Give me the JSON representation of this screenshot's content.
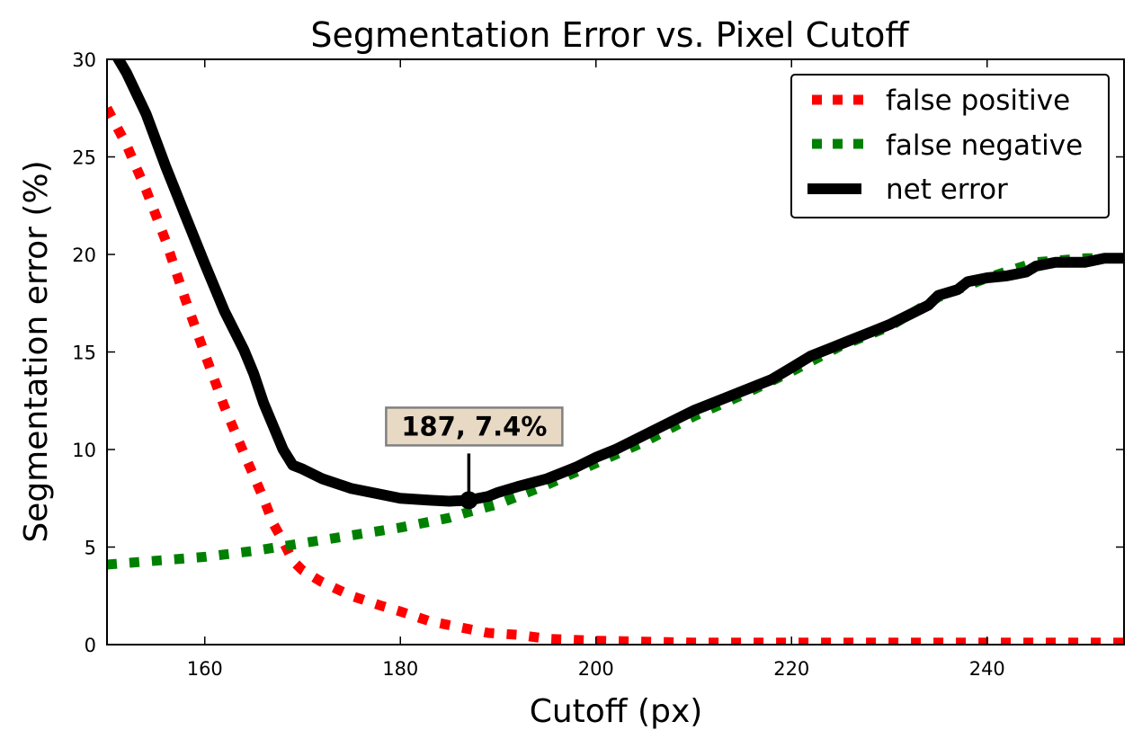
{
  "chart_data": {
    "type": "line",
    "title": "Segmentation Error vs. Pixel Cutoff",
    "xlabel": "Cutoff (px)",
    "ylabel": "Segmentation error (%)",
    "xlim": [
      150,
      254
    ],
    "ylim": [
      0,
      30
    ],
    "xticks": [
      160,
      180,
      200,
      220,
      240
    ],
    "yticks": [
      0,
      5,
      10,
      15,
      20,
      25,
      30
    ],
    "grid": false,
    "legend_position": "top-right",
    "series": [
      {
        "name": "false positive",
        "color": "#ff0000",
        "style": "dotted",
        "x": [
          150,
          152,
          154,
          156,
          158,
          160,
          162,
          164,
          166,
          167,
          168,
          169,
          170,
          172,
          175,
          178,
          180,
          183,
          186,
          189,
          192,
          195,
          200,
          205,
          210,
          220,
          230,
          240,
          254
        ],
        "y": [
          27.5,
          25.6,
          23.3,
          20.7,
          17.7,
          14.9,
          12.2,
          9.8,
          7.5,
          6.2,
          5.3,
          4.3,
          3.8,
          3.2,
          2.5,
          2.0,
          1.7,
          1.2,
          0.9,
          0.6,
          0.5,
          0.3,
          0.2,
          0.15,
          0.1,
          0.1,
          0.1,
          0.1,
          0.1
        ]
      },
      {
        "name": "false negative",
        "color": "#008000",
        "style": "dotted",
        "x": [
          150,
          155,
          160,
          165,
          170,
          175,
          180,
          185,
          187,
          190,
          195,
          200,
          205,
          210,
          215,
          220,
          225,
          230,
          235,
          240,
          245,
          250,
          254
        ],
        "y": [
          4.1,
          4.3,
          4.5,
          4.8,
          5.2,
          5.6,
          6.0,
          6.5,
          6.8,
          7.2,
          8.2,
          9.3,
          10.4,
          11.7,
          12.8,
          14.0,
          15.3,
          16.3,
          17.8,
          18.8,
          19.6,
          19.8,
          19.8
        ]
      },
      {
        "name": "net error",
        "color": "#000000",
        "style": "solid",
        "x": [
          150,
          152,
          154,
          156,
          158,
          160,
          162,
          164,
          165,
          166,
          167,
          168,
          169,
          170,
          172,
          175,
          178,
          180,
          183,
          185,
          187,
          189,
          190,
          192,
          195,
          198,
          200,
          202,
          204,
          206,
          208,
          210,
          212,
          215,
          218,
          220,
          222,
          224,
          226,
          228,
          230,
          232,
          234,
          235,
          237,
          238,
          240,
          242,
          243,
          244,
          245,
          247,
          249,
          250,
          251,
          252,
          254
        ],
        "y": [
          31.0,
          29.3,
          27.2,
          24.5,
          22.0,
          19.5,
          17.1,
          15.1,
          13.9,
          12.4,
          11.2,
          10.0,
          9.2,
          9.0,
          8.5,
          8.0,
          7.7,
          7.5,
          7.4,
          7.35,
          7.4,
          7.6,
          7.8,
          8.1,
          8.5,
          9.1,
          9.6,
          10.0,
          10.5,
          11.0,
          11.5,
          12.0,
          12.4,
          13.0,
          13.6,
          14.2,
          14.8,
          15.2,
          15.6,
          16.0,
          16.4,
          16.9,
          17.4,
          17.9,
          18.2,
          18.6,
          18.8,
          18.9,
          19.0,
          19.1,
          19.4,
          19.6,
          19.6,
          19.6,
          19.7,
          19.8,
          19.8
        ]
      }
    ],
    "annotation": {
      "text": "187, 7.4%",
      "point_x": 187,
      "point_y": 7.4,
      "box_fill": "#e8d9c5",
      "box_stroke": "#808080"
    }
  }
}
